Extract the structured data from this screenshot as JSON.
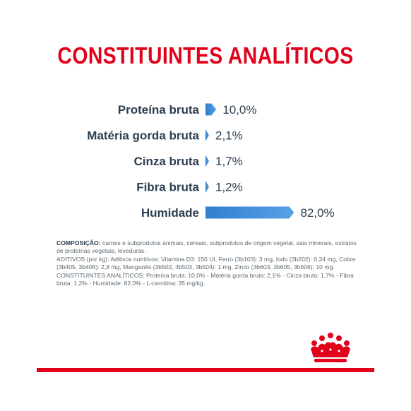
{
  "title": "CONSTITUINTES ANALÍTICOS",
  "chart_data": {
    "type": "bar",
    "categories": [
      "Proteína bruta",
      "Matéria gorda bruta",
      "Cinza bruta",
      "Fibra bruta",
      "Humidade"
    ],
    "values": [
      10.0,
      2.1,
      1.7,
      1.2,
      82.0
    ],
    "value_labels": [
      "10,0%",
      "2,1%",
      "1,7%",
      "1,2%",
      "82,0%"
    ],
    "unit": "%",
    "orientation": "horizontal",
    "xlim": [
      0,
      100
    ],
    "bar_color": "#2f7fd0",
    "bar_color_light": "#5aa0e6",
    "label_color": "#2c3e50"
  },
  "composition": {
    "heading": "COMPOSIÇÃO:",
    "ingredients": "carnes e subprodutos animais, cereais, subprodutos de origem vegetal, sais minerais, extratos de proteínas vegetais, leveduras.",
    "additives": "ADITIVOS (por kg): Aditivos nutritivos: Vitamina D3: 150 UI, Ferro (3b103): 3 mg, Iodo (3b202): 0,34 mg, Cobre (3b405, 3b406): 2,8 mg, Manganês (3b502, 3b503, 3b504): 1 mg, Zinco (3b603, 3b605, 3b606): 10 mg.",
    "analytical": "CONSTITUINTES ANALÍTICOS: Proteína bruta: 10,0% - Matéria gorda bruta: 2,1% - Cinza bruta: 1,7% - Fibra bruta: 1,2% - Humidade: 82,0% - L-carnitina: 35 mg/kg."
  },
  "colors": {
    "brand_red": "#e2001a",
    "text_dark": "#2c3e50",
    "text_body": "#5d6a73"
  },
  "logo": {
    "name": "crown-logo-icon"
  }
}
